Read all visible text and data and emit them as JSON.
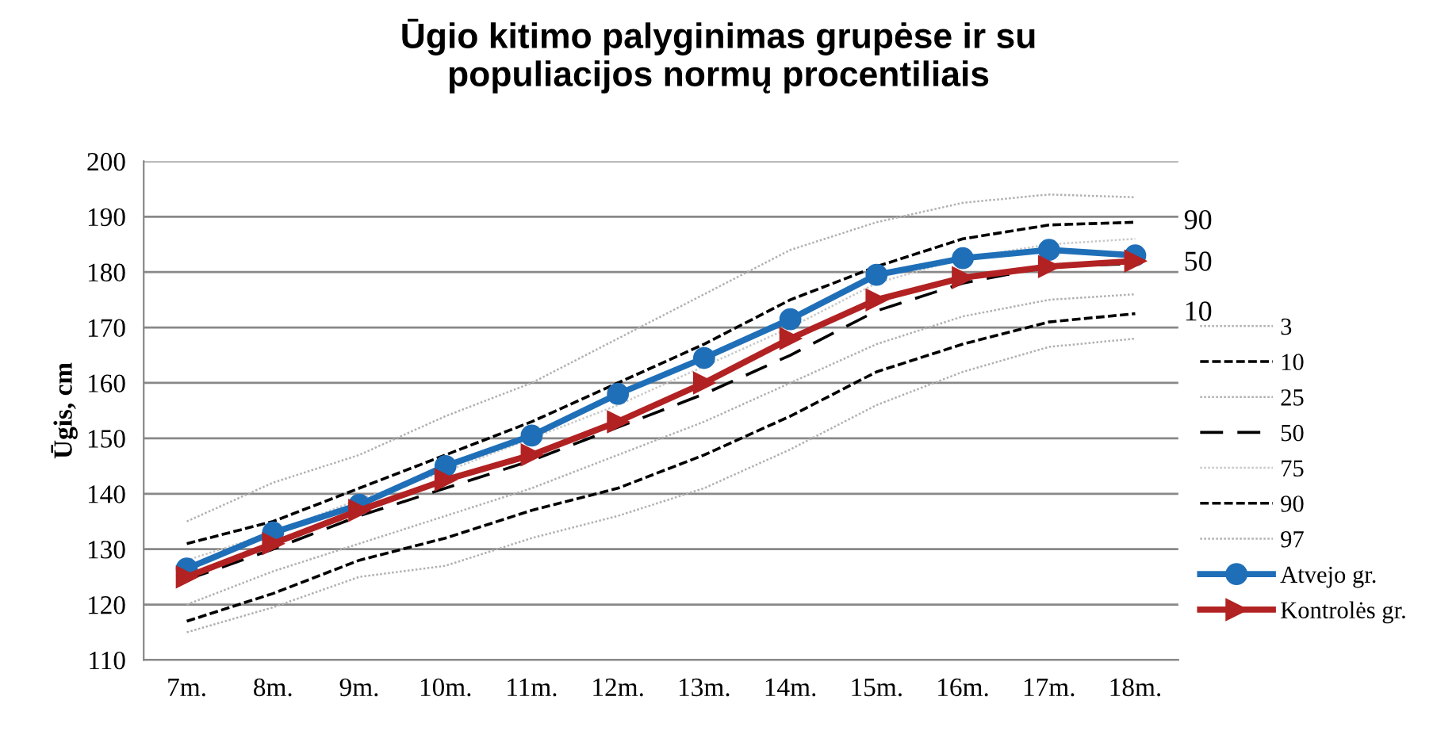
{
  "chart_data": {
    "type": "line",
    "title": "Ūgio kitimo palyginimas grupėse ir su populiacijos normų procentiliais",
    "ylabel": "Ūgis, cm",
    "categories": [
      "7m.",
      "8m.",
      "9m.",
      "10m.",
      "11m.",
      "12m.",
      "13m.",
      "14m.",
      "15m.",
      "16m.",
      "17m.",
      "18m."
    ],
    "ylim": [
      110,
      200
    ],
    "yticks": [
      110,
      120,
      130,
      140,
      150,
      160,
      170,
      180,
      190,
      200
    ],
    "grid": "y",
    "legend": "right",
    "series": [
      {
        "name": "3",
        "color": "#b0b0b0",
        "line_style": "dotted",
        "marker": "none",
        "values": [
          115,
          119.5,
          125,
          127,
          132,
          136,
          141,
          148,
          156,
          162,
          166.5,
          168
        ]
      },
      {
        "name": "10",
        "color": "#000000",
        "line_style": "dashed",
        "marker": "none",
        "values": [
          117,
          122,
          128,
          132,
          137,
          141,
          147,
          154,
          162,
          167,
          171,
          172.5
        ]
      },
      {
        "name": "25",
        "color": "#b0b0b0",
        "line_style": "dotted",
        "marker": "none",
        "values": [
          120,
          126,
          131,
          136,
          141,
          147,
          153,
          160,
          167,
          172,
          175,
          176
        ]
      },
      {
        "name": "50",
        "color": "#000000",
        "line_style": "longdash",
        "marker": "none",
        "values": [
          124.5,
          130,
          136,
          141,
          146,
          152,
          158,
          165,
          173,
          178,
          181,
          181.5
        ]
      },
      {
        "name": "75",
        "color": "#c8c8c8",
        "line_style": "dotted",
        "marker": "none",
        "values": [
          128,
          133,
          139,
          144,
          150,
          156,
          163,
          170,
          178,
          182.5,
          185,
          186
        ]
      },
      {
        "name": "90",
        "color": "#000000",
        "line_style": "dashed",
        "marker": "none",
        "values": [
          131,
          135,
          141,
          147,
          153,
          160,
          167,
          175,
          181,
          186,
          188.5,
          189
        ]
      },
      {
        "name": "97",
        "color": "#b0b0b0",
        "line_style": "dotted",
        "marker": "none",
        "values": [
          135,
          142,
          147,
          154,
          160,
          168,
          176,
          184,
          189,
          192.5,
          194,
          193.5
        ]
      },
      {
        "name": "Atvejo gr.",
        "color": "#1f6fb8",
        "line_style": "solid",
        "marker": "circle",
        "values": [
          126.5,
          133,
          138,
          145,
          150.5,
          158,
          164.5,
          171.5,
          179.5,
          182.5,
          184,
          183
        ]
      },
      {
        "name": "Kontrolės gr.",
        "color": "#b22222",
        "line_style": "solid",
        "marker": "triangle",
        "values": [
          125,
          131,
          137,
          142.5,
          147,
          153,
          160,
          168,
          175,
          179,
          181,
          182
        ]
      }
    ],
    "annotations": [
      {
        "text": "90",
        "x": "18m.",
        "y": 189
      },
      {
        "text": "50",
        "x": "18m.",
        "y": 181.5
      },
      {
        "text": "10",
        "x": "18m.",
        "y": 172.5
      }
    ]
  }
}
